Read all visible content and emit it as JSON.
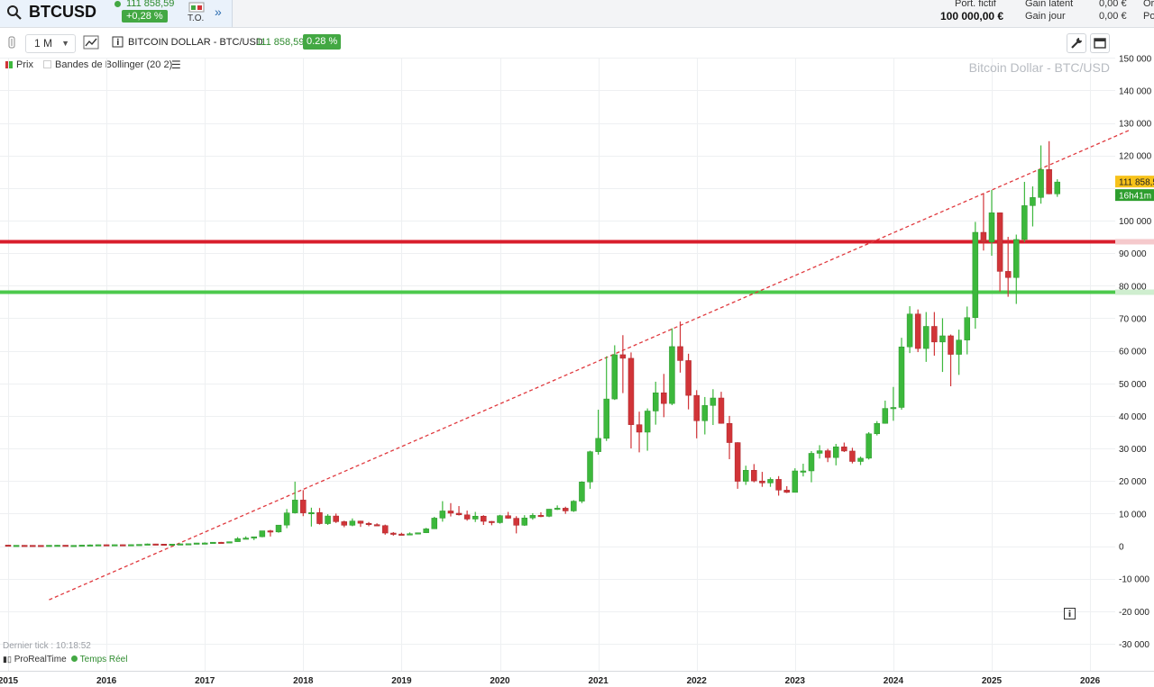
{
  "header": {
    "symbol": "BTCUSD",
    "price": "111 858,59",
    "change": "+0,28 %",
    "to_label": "T.O.",
    "portfolio_label": "Port. fictif",
    "portfolio_value": "100 000,00 €",
    "gain_latent_label": "Gain latent",
    "gain_jour_label": "Gain jour",
    "gain_latent_value": "0,00 €",
    "gain_jour_value": "0,00 €",
    "cut_1": "Or",
    "cut_2": "Po"
  },
  "toolbar": {
    "period": "1 M",
    "instrument": "BITCOIN DOLLAR - BTC/USD",
    "price": "111 858,59",
    "change": "0.28 %"
  },
  "legend": {
    "price_label": "Prix",
    "bollinger_label": "Bandes de Bollinger (20 2)"
  },
  "footer": {
    "last_tick": "Dernier tick : 10:18:52",
    "brand": "ProRealTime",
    "realtime": "Temps Réel"
  },
  "colors": {
    "up": "#3cb83c",
    "down": "#d13438",
    "resistance": "#d81e2c",
    "support": "#4cc94c",
    "trendline": "#e0393e"
  },
  "chart_data": {
    "type": "candlestick",
    "title": "Bitcoin Dollar - BTC/USD",
    "interval": "1 M",
    "ylim": [
      -30000,
      150000
    ],
    "y_ticks": [
      -30000,
      -20000,
      -10000,
      0,
      10000,
      20000,
      30000,
      40000,
      50000,
      60000,
      70000,
      80000,
      90000,
      100000,
      110000,
      120000,
      130000,
      140000,
      150000
    ],
    "y_tick_labels": [
      "-30 000",
      "-20 000",
      "-10 000",
      "0",
      "10 000",
      "20 000",
      "30 000",
      "40 000",
      "50 000",
      "60 000",
      "70 000",
      "80 000",
      "90 000",
      "100 000",
      "",
      "120 000",
      "130 000",
      "140 000",
      "150 000"
    ],
    "x_ticks": [
      "2015",
      "2016",
      "2017",
      "2018",
      "2019",
      "2020",
      "2021",
      "2022",
      "2023",
      "2024",
      "2025",
      "2026"
    ],
    "last_price": "111 858,5",
    "countdown": "16h41m",
    "horizontal_lines": [
      {
        "value": 93500,
        "role": "resistance"
      },
      {
        "value": 78000,
        "role": "support"
      }
    ],
    "trendline": {
      "from": {
        "date": "2015-06",
        "value": -16500
      },
      "to": {
        "date": "2026-06",
        "value": 128000
      }
    },
    "candles": [
      {
        "date": "2015-01",
        "o": 320,
        "h": 320,
        "l": 170,
        "c": 220
      },
      {
        "date": "2015-02",
        "o": 220,
        "h": 260,
        "l": 210,
        "c": 255
      },
      {
        "date": "2015-03",
        "o": 255,
        "h": 300,
        "l": 240,
        "c": 245
      },
      {
        "date": "2015-04",
        "o": 245,
        "h": 260,
        "l": 210,
        "c": 235
      },
      {
        "date": "2015-05",
        "o": 235,
        "h": 245,
        "l": 225,
        "c": 230
      },
      {
        "date": "2015-06",
        "o": 230,
        "h": 265,
        "l": 220,
        "c": 265
      },
      {
        "date": "2015-07",
        "o": 265,
        "h": 320,
        "l": 255,
        "c": 285
      },
      {
        "date": "2015-08",
        "o": 285,
        "h": 285,
        "l": 200,
        "c": 230
      },
      {
        "date": "2015-09",
        "o": 230,
        "h": 245,
        "l": 225,
        "c": 237
      },
      {
        "date": "2015-10",
        "o": 237,
        "h": 330,
        "l": 235,
        "c": 315
      },
      {
        "date": "2015-11",
        "o": 315,
        "h": 500,
        "l": 300,
        "c": 378
      },
      {
        "date": "2015-12",
        "o": 378,
        "h": 465,
        "l": 350,
        "c": 430
      },
      {
        "date": "2016-01",
        "o": 430,
        "h": 460,
        "l": 350,
        "c": 370
      },
      {
        "date": "2016-02",
        "o": 370,
        "h": 440,
        "l": 365,
        "c": 437
      },
      {
        "date": "2016-03",
        "o": 437,
        "h": 440,
        "l": 400,
        "c": 416
      },
      {
        "date": "2016-04",
        "o": 416,
        "h": 470,
        "l": 412,
        "c": 448
      },
      {
        "date": "2016-05",
        "o": 448,
        "h": 550,
        "l": 440,
        "c": 530
      },
      {
        "date": "2016-06",
        "o": 530,
        "h": 780,
        "l": 530,
        "c": 670
      },
      {
        "date": "2016-07",
        "o": 670,
        "h": 700,
        "l": 610,
        "c": 624
      },
      {
        "date": "2016-08",
        "o": 624,
        "h": 620,
        "l": 540,
        "c": 575
      },
      {
        "date": "2016-09",
        "o": 575,
        "h": 610,
        "l": 590,
        "c": 609
      },
      {
        "date": "2016-10",
        "o": 609,
        "h": 720,
        "l": 600,
        "c": 700
      },
      {
        "date": "2016-11",
        "o": 700,
        "h": 750,
        "l": 690,
        "c": 742
      },
      {
        "date": "2016-12",
        "o": 742,
        "h": 980,
        "l": 740,
        "c": 963
      },
      {
        "date": "2017-01",
        "o": 963,
        "h": 1150,
        "l": 750,
        "c": 970
      },
      {
        "date": "2017-02",
        "o": 970,
        "h": 1200,
        "l": 920,
        "c": 1190
      },
      {
        "date": "2017-03",
        "o": 1190,
        "h": 1280,
        "l": 890,
        "c": 1080
      },
      {
        "date": "2017-04",
        "o": 1080,
        "h": 1350,
        "l": 1070,
        "c": 1350
      },
      {
        "date": "2017-05",
        "o": 1350,
        "h": 2760,
        "l": 1340,
        "c": 2300
      },
      {
        "date": "2017-06",
        "o": 2300,
        "h": 3000,
        "l": 2200,
        "c": 2480
      },
      {
        "date": "2017-07",
        "o": 2480,
        "h": 2900,
        "l": 1840,
        "c": 2870
      },
      {
        "date": "2017-08",
        "o": 2870,
        "h": 4700,
        "l": 2700,
        "c": 4700
      },
      {
        "date": "2017-09",
        "o": 4700,
        "h": 4980,
        "l": 2950,
        "c": 4340
      },
      {
        "date": "2017-10",
        "o": 4340,
        "h": 6470,
        "l": 4100,
        "c": 6450
      },
      {
        "date": "2017-11",
        "o": 6450,
        "h": 11400,
        "l": 5500,
        "c": 10200
      },
      {
        "date": "2017-12",
        "o": 10200,
        "h": 19800,
        "l": 10000,
        "c": 14150
      },
      {
        "date": "2018-01",
        "o": 14150,
        "h": 17200,
        "l": 9200,
        "c": 10200
      },
      {
        "date": "2018-02",
        "o": 10200,
        "h": 11800,
        "l": 6000,
        "c": 10300
      },
      {
        "date": "2018-03",
        "o": 10300,
        "h": 11700,
        "l": 6600,
        "c": 6900
      },
      {
        "date": "2018-04",
        "o": 6900,
        "h": 9800,
        "l": 6500,
        "c": 9250
      },
      {
        "date": "2018-05",
        "o": 9250,
        "h": 10000,
        "l": 7100,
        "c": 7500
      },
      {
        "date": "2018-06",
        "o": 7500,
        "h": 7800,
        "l": 5800,
        "c": 6400
      },
      {
        "date": "2018-07",
        "o": 6400,
        "h": 8500,
        "l": 6100,
        "c": 7700
      },
      {
        "date": "2018-08",
        "o": 7700,
        "h": 7800,
        "l": 5900,
        "c": 7000
      },
      {
        "date": "2018-09",
        "o": 7000,
        "h": 7400,
        "l": 6100,
        "c": 6600
      },
      {
        "date": "2018-10",
        "o": 6600,
        "h": 7000,
        "l": 6200,
        "c": 6300
      },
      {
        "date": "2018-11",
        "o": 6300,
        "h": 6600,
        "l": 3500,
        "c": 4000
      },
      {
        "date": "2018-12",
        "o": 4000,
        "h": 4300,
        "l": 3200,
        "c": 3700
      },
      {
        "date": "2019-01",
        "o": 3700,
        "h": 4100,
        "l": 3350,
        "c": 3400
      },
      {
        "date": "2019-02",
        "o": 3400,
        "h": 4200,
        "l": 3400,
        "c": 3800
      },
      {
        "date": "2019-03",
        "o": 3800,
        "h": 4100,
        "l": 3700,
        "c": 4100
      },
      {
        "date": "2019-04",
        "o": 4100,
        "h": 5600,
        "l": 4000,
        "c": 5300
      },
      {
        "date": "2019-05",
        "o": 5300,
        "h": 9000,
        "l": 5300,
        "c": 8600
      },
      {
        "date": "2019-06",
        "o": 8600,
        "h": 13800,
        "l": 7500,
        "c": 10800
      },
      {
        "date": "2019-07",
        "o": 10800,
        "h": 13200,
        "l": 9100,
        "c": 10100
      },
      {
        "date": "2019-08",
        "o": 10100,
        "h": 12300,
        "l": 9400,
        "c": 9600
      },
      {
        "date": "2019-09",
        "o": 9600,
        "h": 10900,
        "l": 7800,
        "c": 8300
      },
      {
        "date": "2019-10",
        "o": 8300,
        "h": 10500,
        "l": 7400,
        "c": 9200
      },
      {
        "date": "2019-11",
        "o": 9200,
        "h": 9500,
        "l": 6500,
        "c": 7600
      },
      {
        "date": "2019-12",
        "o": 7600,
        "h": 7700,
        "l": 6400,
        "c": 7200
      },
      {
        "date": "2020-01",
        "o": 7200,
        "h": 9600,
        "l": 6900,
        "c": 9350
      },
      {
        "date": "2020-02",
        "o": 9350,
        "h": 10500,
        "l": 8400,
        "c": 8550
      },
      {
        "date": "2020-03",
        "o": 8550,
        "h": 9200,
        "l": 3900,
        "c": 6400
      },
      {
        "date": "2020-04",
        "o": 6400,
        "h": 9500,
        "l": 6200,
        "c": 8650
      },
      {
        "date": "2020-05",
        "o": 8650,
        "h": 10100,
        "l": 8100,
        "c": 9450
      },
      {
        "date": "2020-06",
        "o": 9450,
        "h": 10400,
        "l": 8900,
        "c": 9150
      },
      {
        "date": "2020-07",
        "o": 9150,
        "h": 11400,
        "l": 8900,
        "c": 11350
      },
      {
        "date": "2020-08",
        "o": 11350,
        "h": 12500,
        "l": 11100,
        "c": 11650
      },
      {
        "date": "2020-09",
        "o": 11650,
        "h": 12100,
        "l": 9900,
        "c": 10800
      },
      {
        "date": "2020-10",
        "o": 10800,
        "h": 14100,
        "l": 10500,
        "c": 13800
      },
      {
        "date": "2020-11",
        "o": 13800,
        "h": 19900,
        "l": 13200,
        "c": 19700
      },
      {
        "date": "2020-12",
        "o": 19700,
        "h": 29300,
        "l": 17600,
        "c": 29000
      },
      {
        "date": "2021-01",
        "o": 29000,
        "h": 41900,
        "l": 28100,
        "c": 33100
      },
      {
        "date": "2021-02",
        "o": 33100,
        "h": 58300,
        "l": 32300,
        "c": 45200
      },
      {
        "date": "2021-03",
        "o": 45200,
        "h": 61700,
        "l": 44900,
        "c": 58800
      },
      {
        "date": "2021-04",
        "o": 58800,
        "h": 64800,
        "l": 47000,
        "c": 57700
      },
      {
        "date": "2021-05",
        "o": 57700,
        "h": 59500,
        "l": 30000,
        "c": 37300
      },
      {
        "date": "2021-06",
        "o": 37300,
        "h": 41300,
        "l": 28800,
        "c": 35000
      },
      {
        "date": "2021-07",
        "o": 35000,
        "h": 42300,
        "l": 29300,
        "c": 41500
      },
      {
        "date": "2021-08",
        "o": 41500,
        "h": 50500,
        "l": 37300,
        "c": 47100
      },
      {
        "date": "2021-09",
        "o": 47100,
        "h": 52900,
        "l": 39600,
        "c": 43800
      },
      {
        "date": "2021-10",
        "o": 43800,
        "h": 66900,
        "l": 43300,
        "c": 61300
      },
      {
        "date": "2021-11",
        "o": 61300,
        "h": 69000,
        "l": 53300,
        "c": 57000
      },
      {
        "date": "2021-12",
        "o": 57000,
        "h": 59100,
        "l": 42000,
        "c": 46300
      },
      {
        "date": "2022-01",
        "o": 46300,
        "h": 47900,
        "l": 33100,
        "c": 38500
      },
      {
        "date": "2022-02",
        "o": 38500,
        "h": 45800,
        "l": 34300,
        "c": 43200
      },
      {
        "date": "2022-03",
        "o": 43200,
        "h": 48200,
        "l": 37200,
        "c": 45500
      },
      {
        "date": "2022-04",
        "o": 45500,
        "h": 47400,
        "l": 37600,
        "c": 37700
      },
      {
        "date": "2022-05",
        "o": 37700,
        "h": 40000,
        "l": 26700,
        "c": 31800
      },
      {
        "date": "2022-06",
        "o": 31800,
        "h": 31900,
        "l": 17600,
        "c": 19900
      },
      {
        "date": "2022-07",
        "o": 19900,
        "h": 24700,
        "l": 18800,
        "c": 23300
      },
      {
        "date": "2022-08",
        "o": 23300,
        "h": 25200,
        "l": 19600,
        "c": 20000
      },
      {
        "date": "2022-09",
        "o": 20000,
        "h": 22800,
        "l": 18200,
        "c": 19400
      },
      {
        "date": "2022-10",
        "o": 19400,
        "h": 21100,
        "l": 18200,
        "c": 20500
      },
      {
        "date": "2022-11",
        "o": 20500,
        "h": 21500,
        "l": 15500,
        "c": 17200
      },
      {
        "date": "2022-12",
        "o": 17200,
        "h": 18400,
        "l": 16300,
        "c": 16500
      },
      {
        "date": "2023-01",
        "o": 16500,
        "h": 23900,
        "l": 16500,
        "c": 23100
      },
      {
        "date": "2023-02",
        "o": 23100,
        "h": 25300,
        "l": 21400,
        "c": 23100
      },
      {
        "date": "2023-03",
        "o": 23100,
        "h": 29200,
        "l": 19600,
        "c": 28500
      },
      {
        "date": "2023-04",
        "o": 28500,
        "h": 31000,
        "l": 26900,
        "c": 29300
      },
      {
        "date": "2023-05",
        "o": 29300,
        "h": 29900,
        "l": 25800,
        "c": 27200
      },
      {
        "date": "2023-06",
        "o": 27200,
        "h": 31400,
        "l": 24800,
        "c": 30500
      },
      {
        "date": "2023-07",
        "o": 30500,
        "h": 31800,
        "l": 28900,
        "c": 29200
      },
      {
        "date": "2023-08",
        "o": 29200,
        "h": 30200,
        "l": 25400,
        "c": 26000
      },
      {
        "date": "2023-09",
        "o": 26000,
        "h": 27500,
        "l": 24900,
        "c": 27000
      },
      {
        "date": "2023-10",
        "o": 27000,
        "h": 35000,
        "l": 26600,
        "c": 34500
      },
      {
        "date": "2023-11",
        "o": 34500,
        "h": 38400,
        "l": 34000,
        "c": 37700
      },
      {
        "date": "2023-12",
        "o": 37700,
        "h": 44700,
        "l": 37600,
        "c": 42300
      },
      {
        "date": "2024-01",
        "o": 42300,
        "h": 48900,
        "l": 38500,
        "c": 42600
      },
      {
        "date": "2024-02",
        "o": 42600,
        "h": 64000,
        "l": 41900,
        "c": 61200
      },
      {
        "date": "2024-03",
        "o": 61200,
        "h": 73700,
        "l": 59300,
        "c": 71300
      },
      {
        "date": "2024-04",
        "o": 71300,
        "h": 72700,
        "l": 59600,
        "c": 60700
      },
      {
        "date": "2024-05",
        "o": 60700,
        "h": 71900,
        "l": 56600,
        "c": 67500
      },
      {
        "date": "2024-06",
        "o": 67500,
        "h": 71900,
        "l": 58500,
        "c": 62700
      },
      {
        "date": "2024-07",
        "o": 62700,
        "h": 70000,
        "l": 53500,
        "c": 64600
      },
      {
        "date": "2024-08",
        "o": 64600,
        "h": 65000,
        "l": 49100,
        "c": 58900
      },
      {
        "date": "2024-09",
        "o": 58900,
        "h": 66500,
        "l": 52600,
        "c": 63300
      },
      {
        "date": "2024-10",
        "o": 63300,
        "h": 73600,
        "l": 58900,
        "c": 70200
      },
      {
        "date": "2024-11",
        "o": 70200,
        "h": 99600,
        "l": 66800,
        "c": 96400
      },
      {
        "date": "2024-12",
        "o": 96400,
        "h": 108300,
        "l": 90800,
        "c": 93400
      },
      {
        "date": "2025-01",
        "o": 93400,
        "h": 109400,
        "l": 89200,
        "c": 102400
      },
      {
        "date": "2025-02",
        "o": 102400,
        "h": 102500,
        "l": 78200,
        "c": 84400
      },
      {
        "date": "2025-03",
        "o": 84400,
        "h": 95000,
        "l": 76600,
        "c": 82500
      },
      {
        "date": "2025-04",
        "o": 82500,
        "h": 95700,
        "l": 74400,
        "c": 94200
      },
      {
        "date": "2025-05",
        "o": 94200,
        "h": 111900,
        "l": 93400,
        "c": 104600
      },
      {
        "date": "2025-06",
        "o": 104600,
        "h": 110500,
        "l": 98200,
        "c": 107100
      },
      {
        "date": "2025-07",
        "o": 107100,
        "h": 123100,
        "l": 105200,
        "c": 115700
      },
      {
        "date": "2025-08",
        "o": 115700,
        "h": 124400,
        "l": 108100,
        "c": 108200
      },
      {
        "date": "2025-09",
        "o": 108200,
        "h": 112700,
        "l": 107300,
        "c": 111858
      }
    ]
  }
}
